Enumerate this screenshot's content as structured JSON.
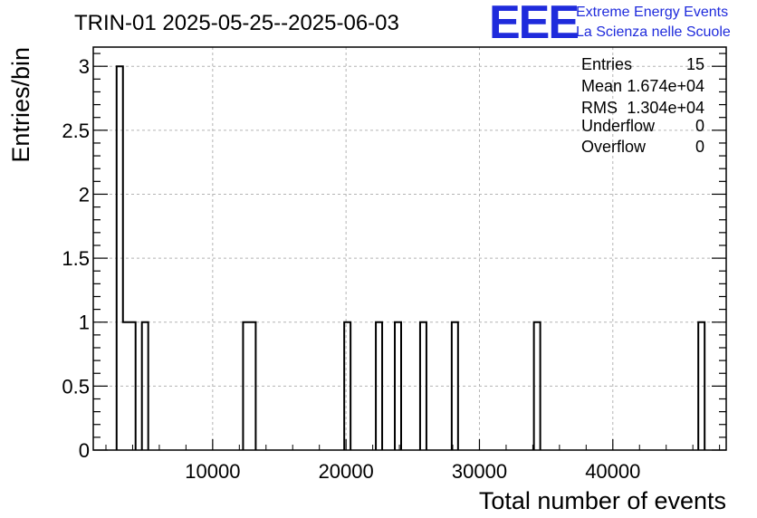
{
  "chart_data": {
    "type": "histogram",
    "title": "TRIN-01 2025-05-25--2025-06-03",
    "xlabel": "Total number of events",
    "ylabel": "Entries/bin",
    "xlim": [
      1050,
      48500
    ],
    "ylim": [
      0,
      3.15
    ],
    "bin_width": 474,
    "bins": [
      {
        "x_low": 2800,
        "x_high": 3274,
        "count": 3
      },
      {
        "x_low": 3274,
        "x_high": 3748,
        "count": 1
      },
      {
        "x_low": 3748,
        "x_high": 4222,
        "count": 1
      },
      {
        "x_low": 4696,
        "x_high": 5170,
        "count": 1
      },
      {
        "x_low": 12280,
        "x_high": 12754,
        "count": 1
      },
      {
        "x_low": 12754,
        "x_high": 13228,
        "count": 1
      },
      {
        "x_low": 19864,
        "x_high": 20338,
        "count": 1
      },
      {
        "x_low": 22234,
        "x_high": 22708,
        "count": 1
      },
      {
        "x_low": 23656,
        "x_high": 24130,
        "count": 1
      },
      {
        "x_low": 25552,
        "x_high": 26026,
        "count": 1
      },
      {
        "x_low": 27922,
        "x_high": 28396,
        "count": 1
      },
      {
        "x_low": 34084,
        "x_high": 34558,
        "count": 1
      },
      {
        "x_low": 46408,
        "x_high": 46882,
        "count": 1
      }
    ],
    "x_ticks": [
      10000,
      20000,
      30000,
      40000
    ],
    "x_tick_labels": [
      "10000",
      "20000",
      "30000",
      "40000"
    ],
    "y_ticks": [
      0,
      0.5,
      1,
      1.5,
      2,
      2.5,
      3
    ],
    "y_tick_labels": [
      "0",
      "0.5",
      "1",
      "1.5",
      "2",
      "2.5",
      "3"
    ],
    "grid": true,
    "line_color": "#000000",
    "grid_color": "#b4b4b4"
  },
  "stats_box": {
    "entries_label": "Entries",
    "entries_value": "15",
    "mean_label": "Mean",
    "mean_value": "1.674e+04",
    "rms_label": "RMS",
    "rms_value": "1.304e+04",
    "underflow_label": "Underflow",
    "underflow_value": "0",
    "overflow_label": "Overflow",
    "overflow_value": "0"
  },
  "logo": {
    "mark": "EEE",
    "line1": "Extreme Energy Events",
    "line2": "La Scienza nelle Scuole",
    "color": "#1f2bdc"
  }
}
